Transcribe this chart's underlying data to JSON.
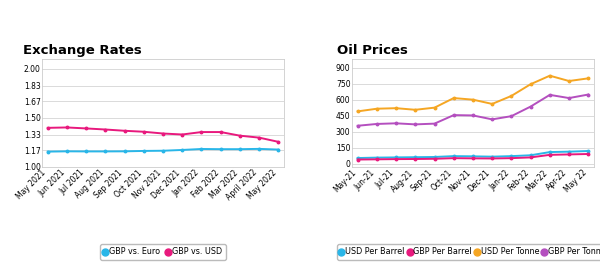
{
  "exchange_rates": {
    "title": "Exchange Rates",
    "x_labels": [
      "May 2021",
      "Jun 2021",
      "Jul 2021",
      "Aug 2021",
      "Sep 2021",
      "Oct 2021",
      "Nov 2021",
      "Dec 2021",
      "Jan 2022",
      "Feb 2022",
      "Mar 2022",
      "April 2022",
      "May 2022"
    ],
    "gbp_euro": [
      1.155,
      1.158,
      1.157,
      1.157,
      1.158,
      1.162,
      1.164,
      1.172,
      1.182,
      1.18,
      1.18,
      1.183,
      1.176
    ],
    "gbp_usd": [
      1.398,
      1.402,
      1.392,
      1.381,
      1.368,
      1.358,
      1.34,
      1.33,
      1.355,
      1.355,
      1.318,
      1.298,
      1.255
    ],
    "euro_color": "#29b6e8",
    "usd_color": "#e8197d",
    "ylim": [
      1.0,
      2.1
    ],
    "yticks": [
      1.0,
      1.17,
      1.33,
      1.5,
      1.67,
      1.83,
      2.0
    ]
  },
  "oil_prices": {
    "title": "Oil Prices",
    "x_labels": [
      "May-21",
      "Jun-21",
      "Jul-21",
      "Aug-21",
      "Sep-21",
      "Oct-21",
      "Nov-21",
      "Dec-21",
      "Jan-22",
      "Feb-22",
      "Mar-22",
      "Apr-22",
      "May 22"
    ],
    "usd_per_barrel": [
      52,
      56,
      58,
      60,
      62,
      70,
      68,
      65,
      70,
      78,
      108,
      112,
      118
    ],
    "gbp_per_barrel": [
      38,
      40,
      42,
      43,
      45,
      51,
      49,
      48,
      51,
      58,
      82,
      86,
      90
    ],
    "usd_per_tonne": [
      490,
      515,
      520,
      505,
      525,
      615,
      600,
      560,
      635,
      745,
      825,
      775,
      800
    ],
    "gbp_per_tonne": [
      355,
      372,
      378,
      368,
      375,
      455,
      452,
      415,
      445,
      535,
      645,
      615,
      648
    ],
    "usd_barrel_color": "#29b6e8",
    "gbp_barrel_color": "#e8197d",
    "usd_tonne_color": "#f5a623",
    "gbp_tonne_color": "#b44fbf",
    "ylim": [
      -30,
      980
    ],
    "yticks": [
      0,
      150,
      300,
      450,
      600,
      750,
      900
    ]
  },
  "background_color": "#ffffff",
  "plot_bg_color": "#ffffff",
  "grid_color": "#cccccc",
  "border_color": "#cccccc",
  "title_fontsize": 9.5,
  "tick_fontsize": 5.5,
  "legend_fontsize": 5.8,
  "line_width": 1.4
}
